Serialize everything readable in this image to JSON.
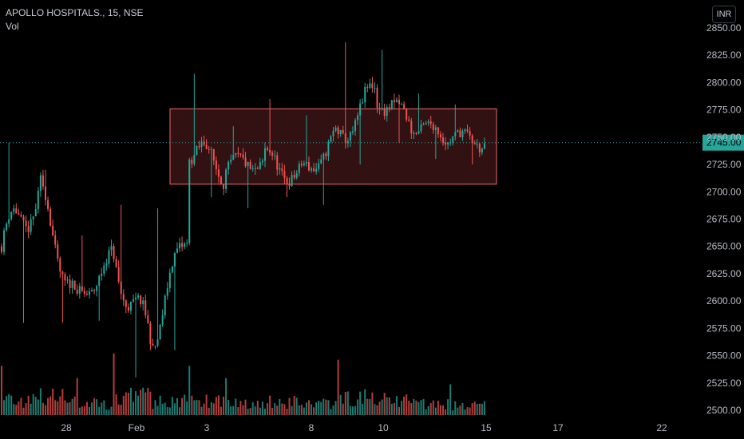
{
  "header": {
    "symbol_line": "APOLLO HOSPITALS., 15, NSE",
    "volume_label": "Vol",
    "currency_button": "INR"
  },
  "colors": {
    "up": "#26a69a",
    "down": "#ef5350",
    "box_fill": "#3a1414",
    "box_border": "#f06a6a",
    "price_tag_bg": "#26a69a",
    "axis_text": "#b8bcc6",
    "background": "#000000"
  },
  "chart_data": {
    "type": "candlestick",
    "y_range": [
      2500,
      2850
    ],
    "y_ticks": [
      "2850.00",
      "2825.00",
      "2800.00",
      "2775.00",
      "2750.00",
      "2725.00",
      "2700.00",
      "2675.00",
      "2650.00",
      "2625.00",
      "2600.00",
      "2575.00",
      "2550.00",
      "2525.00",
      "2500.00"
    ],
    "x_ticks": [
      "28",
      "Feb",
      "3",
      "8",
      "10",
      "15",
      "17",
      "22"
    ],
    "current_price": 2745.0,
    "current_price_label": "2745.00",
    "range_box": {
      "price_low": 2707,
      "price_high": 2776
    },
    "sessions": [
      {
        "open": 2650,
        "close": 2700,
        "high": 2745,
        "low": 2580,
        "vol": 8
      },
      {
        "open": 2700,
        "close": 2600,
        "high": 2720,
        "low": 2580,
        "vol": 9
      },
      {
        "open": 2600,
        "close": 2640,
        "high": 2660,
        "low": 2582,
        "vol": 6
      },
      {
        "open": 2640,
        "close": 2560,
        "high": 2688,
        "low": 2530,
        "vol": 10
      },
      {
        "open": 2560,
        "close": 2665,
        "high": 2685,
        "low": 2555,
        "vol": 7
      },
      {
        "open": 2740,
        "close": 2720,
        "high": 2808,
        "low": 2695,
        "vol": 8
      },
      {
        "open": 2720,
        "close": 2730,
        "high": 2760,
        "low": 2685,
        "vol": 6
      },
      {
        "open": 2730,
        "close": 2715,
        "high": 2785,
        "low": 2695,
        "vol": 7
      },
      {
        "open": 2715,
        "close": 2750,
        "high": 2770,
        "low": 2688,
        "vol": 6
      },
      {
        "open": 2750,
        "close": 2790,
        "high": 2837,
        "low": 2725,
        "vol": 9
      },
      {
        "open": 2790,
        "close": 2760,
        "high": 2830,
        "low": 2745,
        "vol": 8
      },
      {
        "open": 2760,
        "close": 2750,
        "high": 2790,
        "low": 2730,
        "vol": 6
      },
      {
        "open": 2750,
        "close": 2745,
        "high": 2780,
        "low": 2725,
        "vol": 5
      }
    ]
  }
}
